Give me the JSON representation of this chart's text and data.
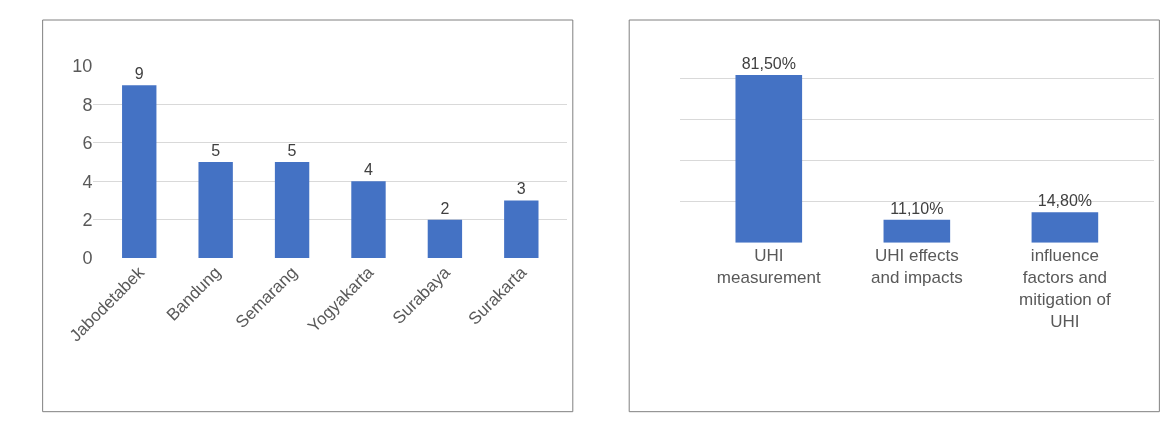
{
  "chart_data": [
    {
      "type": "bar",
      "categories": [
        "Jabodetabek",
        "Bandung",
        "Semarang",
        "Yogyakarta",
        "Surabaya",
        "Surakarta"
      ],
      "values": [
        9,
        5,
        5,
        4,
        2,
        3
      ],
      "color": "#4472c4",
      "ylim": [
        0,
        10
      ],
      "yticks": [
        0,
        2,
        4,
        6,
        8,
        10
      ],
      "grid": "y",
      "data_labels": true
    },
    {
      "type": "bar",
      "categories": [
        "UHI\nmeasurement",
        "UHI effects\nand impacts",
        "influence\nfactors and\nmitigation of\nUHI"
      ],
      "values": [
        81.5,
        11.1,
        14.8
      ],
      "value_labels": [
        "81,50%",
        "11,10%",
        "14,80%"
      ],
      "color": "#4472c4",
      "grid": "y",
      "tick_labels": "x"
    }
  ]
}
